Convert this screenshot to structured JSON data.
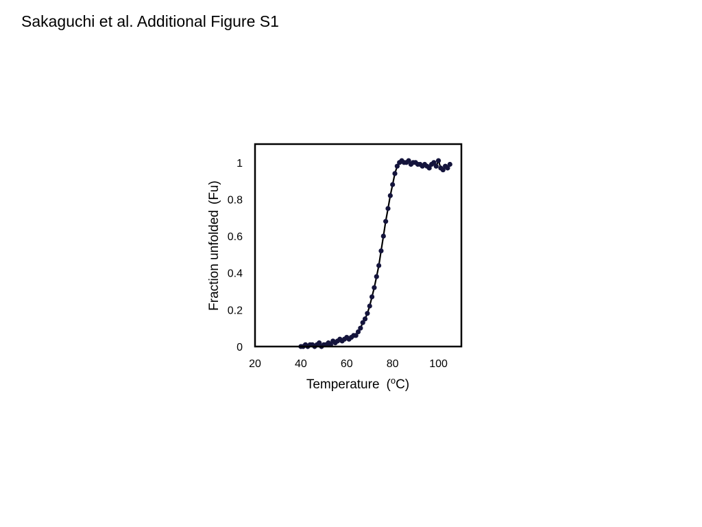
{
  "page": {
    "title": "Sakaguchi et al. Additional Figure S1"
  },
  "chart_data": {
    "type": "scatter",
    "title": "",
    "xlabel": "Temperature",
    "xlabel_unit": "(",
    "xlabel_unit_sup": "o",
    "xlabel_unit_end": "C)",
    "ylabel": "Fraction unfolded",
    "ylabel_unit": "(Fu)",
    "xlim": [
      20,
      110
    ],
    "ylim": [
      0,
      1.1
    ],
    "x_ticks": [
      20,
      40,
      60,
      80,
      100
    ],
    "x_tick_labels": [
      "20",
      "40",
      "60",
      "80",
      "100"
    ],
    "y_ticks": [
      0,
      0.2,
      0.4,
      0.6,
      0.8,
      1
    ],
    "y_tick_labels": [
      "0",
      "0.2",
      "0.4",
      "0.6",
      "0.8",
      "1"
    ],
    "grid": false,
    "legend": "none",
    "series": [
      {
        "marker_color": "#14143c",
        "line_color": "#000000",
        "x": [
          40,
          41,
          42,
          43,
          44,
          45,
          46,
          47,
          48,
          49,
          50,
          51,
          52,
          53,
          54,
          55,
          56,
          57,
          58,
          59,
          60,
          61,
          62,
          63,
          64,
          65,
          66,
          67,
          68,
          69,
          70,
          71,
          72,
          73,
          74,
          75,
          76,
          77,
          78,
          79,
          80,
          81,
          82,
          83,
          84,
          85,
          86,
          87,
          88,
          89,
          90,
          91,
          92,
          93,
          94,
          95,
          96,
          97,
          98,
          99,
          100,
          101,
          102,
          103,
          104,
          105
        ],
        "y": [
          0.0,
          0.0,
          0.01,
          0.0,
          0.01,
          0.01,
          0.0,
          0.01,
          0.02,
          0.0,
          0.01,
          0.01,
          0.02,
          0.01,
          0.03,
          0.02,
          0.03,
          0.04,
          0.03,
          0.04,
          0.05,
          0.04,
          0.05,
          0.06,
          0.06,
          0.08,
          0.1,
          0.13,
          0.15,
          0.18,
          0.22,
          0.27,
          0.32,
          0.38,
          0.44,
          0.52,
          0.6,
          0.68,
          0.75,
          0.82,
          0.88,
          0.94,
          0.98,
          1.0,
          1.01,
          1.0,
          1.0,
          1.01,
          0.99,
          1.0,
          1.0,
          0.99,
          0.99,
          0.98,
          0.99,
          0.98,
          0.97,
          0.99,
          1.0,
          0.98,
          1.01,
          0.97,
          0.96,
          0.98,
          0.97,
          0.99
        ]
      }
    ]
  }
}
